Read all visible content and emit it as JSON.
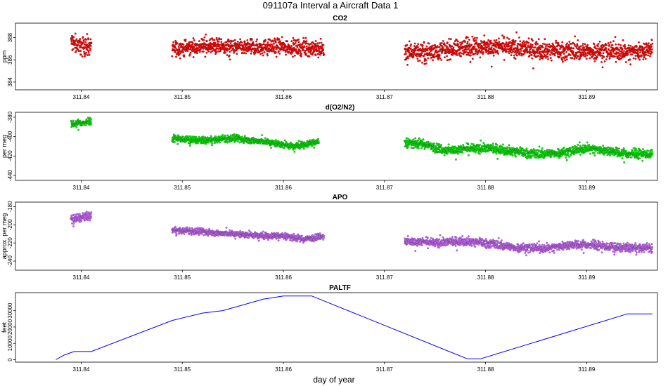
{
  "chart_data": {
    "type": "scatter",
    "title": "091107a   Interval a Aircraft Data 1",
    "xlabel": "day of year",
    "xlim": [
      311.8335,
      311.897
    ],
    "xticks": [
      311.84,
      311.85,
      311.86,
      311.87,
      311.88,
      311.89
    ],
    "xtick_labels": [
      "311.84",
      "311.85",
      "311.86",
      "311.87",
      "311.88",
      "311.89"
    ],
    "panels": [
      {
        "name": "co2",
        "title": "CO2",
        "ylabel": "ppm",
        "type": "scatter",
        "color": "#ff0000",
        "ylim": [
          383.3,
          389.3
        ],
        "yticks": [
          384,
          386,
          388
        ],
        "ytick_labels": [
          "384",
          "386",
          "388"
        ],
        "segments": [
          {
            "x": [
              311.839,
              311.8399,
              311.841
            ],
            "y": [
              387.6,
              387.3,
              387.2
            ],
            "spread": 0.7
          },
          {
            "x": [
              311.849,
              311.852,
              311.856,
              311.86,
              311.864
            ],
            "y": [
              387.0,
              387.2,
              387.1,
              387.2,
              386.9
            ],
            "spread": 0.6
          },
          {
            "x": [
              311.872,
              311.874,
              311.876,
              311.879,
              311.882,
              311.885,
              311.888,
              311.891,
              311.894,
              311.8965
            ],
            "y": [
              386.8,
              386.7,
              386.9,
              387.2,
              387.1,
              386.9,
              386.8,
              386.8,
              386.7,
              387.0
            ],
            "spread": 0.7
          }
        ]
      },
      {
        "name": "o2n2",
        "title": "d(O2/N2)",
        "ylabel": "per meg",
        "type": "scatter",
        "color": "#00ee00",
        "ylim": [
          -445,
          -375
        ],
        "yticks": [
          -440,
          -420,
          -400,
          -380
        ],
        "ytick_labels": [
          "-440",
          "-420",
          "-400",
          "-380"
        ],
        "segments": [
          {
            "x": [
              311.839,
              311.84,
              311.841
            ],
            "y": [
              -387,
              -386,
              -385
            ],
            "spread": 3
          },
          {
            "x": [
              311.849,
              311.852,
              311.855,
              311.858,
              311.861,
              311.8635
            ],
            "y": [
              -402,
              -404,
              -402,
              -405,
              -410,
              -405
            ],
            "spread": 3
          },
          {
            "x": [
              311.872,
              311.874,
              311.876,
              311.878,
              311.88,
              311.882,
              311.885,
              311.888,
              311.89,
              311.892,
              311.894,
              311.8965
            ],
            "y": [
              -406,
              -408,
              -414,
              -413,
              -412,
              -414,
              -418,
              -416,
              -412,
              -414,
              -418,
              -418
            ],
            "spread": 4
          }
        ]
      },
      {
        "name": "apo",
        "title": "APO",
        "ylabel": "approx. per meg",
        "type": "scatter",
        "color": "#cc66ff",
        "ylim": [
          -250,
          -175
        ],
        "yticks": [
          -240,
          -220,
          -200,
          -180
        ],
        "ytick_labels": [
          "-240",
          "-220",
          "-200",
          "-180"
        ],
        "segments": [
          {
            "x": [
              311.839,
              311.84,
              311.841
            ],
            "y": [
              -194,
              -192,
              -190
            ],
            "spread": 4
          },
          {
            "x": [
              311.849,
              311.852,
              311.855,
              311.858,
              311.86,
              311.862,
              311.864
            ],
            "y": [
              -206,
              -208,
              -210,
              -212,
              -212,
              -216,
              -212
            ],
            "spread": 3
          },
          {
            "x": [
              311.872,
              311.875,
              311.878,
              311.88,
              311.883,
              311.886,
              311.888,
              311.89,
              311.893,
              311.8965
            ],
            "y": [
              -218,
              -220,
              -218,
              -220,
              -225,
              -226,
              -222,
              -222,
              -225,
              -226
            ],
            "spread": 4
          }
        ]
      },
      {
        "name": "paltf",
        "title": "PALTF",
        "ylabel": "feet",
        "type": "line",
        "color": "#0000ff",
        "ylim": [
          -1500,
          41000
        ],
        "yticks": [
          0,
          10000,
          20000,
          30000
        ],
        "ytick_labels": [
          "0",
          "10000",
          "20000",
          "30000"
        ],
        "x": [
          311.8375,
          311.8383,
          311.8393,
          311.841,
          311.849,
          311.852,
          311.854,
          311.856,
          311.858,
          311.86,
          311.8628,
          311.8782,
          311.8795,
          311.894,
          311.8965
        ],
        "y": [
          0,
          2800,
          5000,
          5000,
          24000,
          28500,
          30000,
          33500,
          37000,
          39000,
          39000,
          500,
          500,
          28000,
          28000
        ]
      }
    ]
  }
}
